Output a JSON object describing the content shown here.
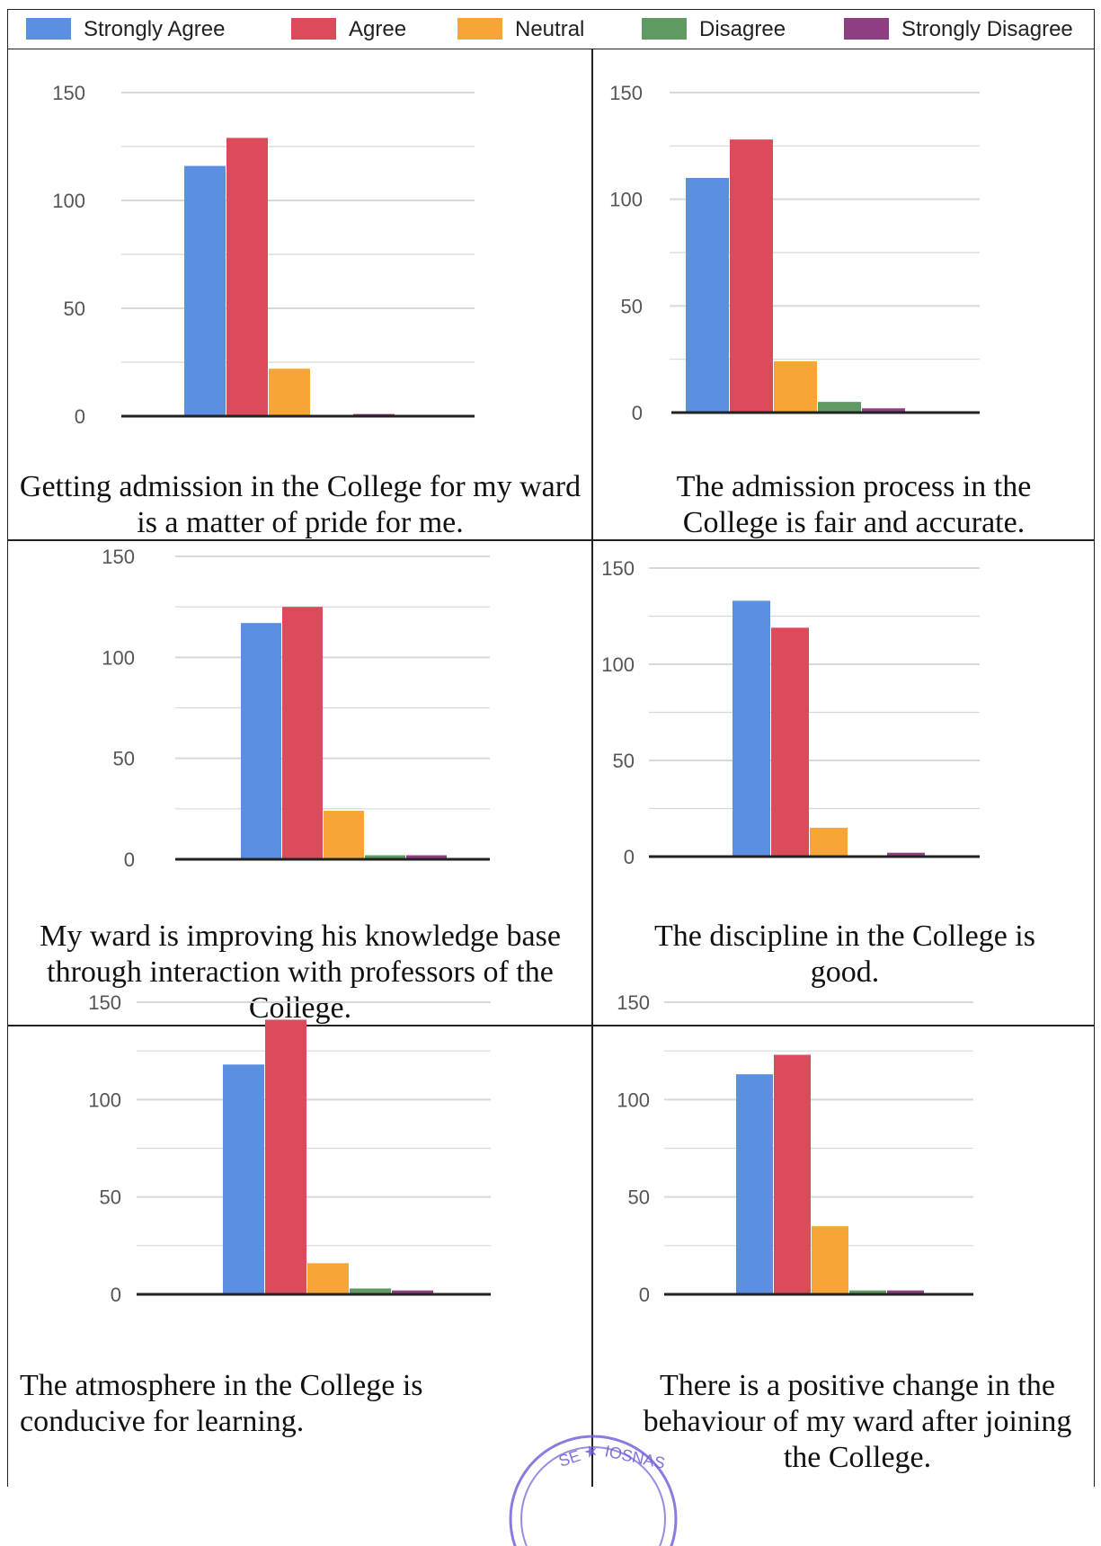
{
  "legend": [
    {
      "label": "Strongly Agree",
      "color": "#5b8fe2"
    },
    {
      "label": "Agree",
      "color": "#dc4b5c"
    },
    {
      "label": "Neutral",
      "color": "#f7a536"
    },
    {
      "label": "Disagree",
      "color": "#5f9a62"
    },
    {
      "label": "Strongly Disagree",
      "color": "#8e3f82"
    }
  ],
  "stamp_text": "SE ★ IOSNAS",
  "chart_data": [
    {
      "type": "bar",
      "title": "Getting admission in the College for my ward is a matter of pride for me.",
      "categories": [
        "Strongly Agree",
        "Agree",
        "Neutral",
        "Disagree",
        "Strongly Disagree"
      ],
      "values": [
        116,
        129,
        22,
        0,
        1
      ],
      "ylim": [
        0,
        150
      ],
      "yticks": [
        "0",
        "50",
        "100",
        "150"
      ],
      "grid": true
    },
    {
      "type": "bar",
      "title": "The admission process in the College is fair and accurate.",
      "categories": [
        "Strongly Agree",
        "Agree",
        "Neutral",
        "Disagree",
        "Strongly Disagree"
      ],
      "values": [
        110,
        128,
        24,
        5,
        2
      ],
      "ylim": [
        0,
        150
      ],
      "yticks": [
        "0",
        "50",
        "100",
        "150"
      ],
      "grid": true
    },
    {
      "type": "bar",
      "title": "My ward is improving his knowledge base through interaction with professors of the College.",
      "categories": [
        "Strongly Agree",
        "Agree",
        "Neutral",
        "Disagree",
        "Strongly Disagree"
      ],
      "values": [
        117,
        125,
        24,
        2,
        2
      ],
      "ylim": [
        0,
        150
      ],
      "yticks": [
        "0",
        "50",
        "100",
        "150"
      ],
      "grid": true
    },
    {
      "type": "bar",
      "title": "The discipline in the College is good.",
      "categories": [
        "Strongly Agree",
        "Agree",
        "Neutral",
        "Disagree",
        "Strongly Disagree"
      ],
      "values": [
        133,
        119,
        15,
        0,
        2
      ],
      "ylim": [
        0,
        150
      ],
      "yticks": [
        "0",
        "50",
        "100",
        "150"
      ],
      "grid": true
    },
    {
      "type": "bar",
      "title": "The atmosphere in the College is conducive for learning.",
      "categories": [
        "Strongly Agree",
        "Agree",
        "Neutral",
        "Disagree",
        "Strongly Disagree"
      ],
      "values": [
        118,
        141,
        16,
        3,
        2
      ],
      "ylim": [
        0,
        150
      ],
      "yticks": [
        "0",
        "50",
        "100",
        "150"
      ],
      "grid": true
    },
    {
      "type": "bar",
      "title": "There is a positive change in the behaviour of my ward after joining the College.",
      "categories": [
        "Strongly Agree",
        "Agree",
        "Neutral",
        "Disagree",
        "Strongly Disagree"
      ],
      "values": [
        113,
        123,
        35,
        2,
        2
      ],
      "ylim": [
        0,
        150
      ],
      "yticks": [
        "0",
        "50",
        "100",
        "150"
      ],
      "grid": true
    }
  ]
}
